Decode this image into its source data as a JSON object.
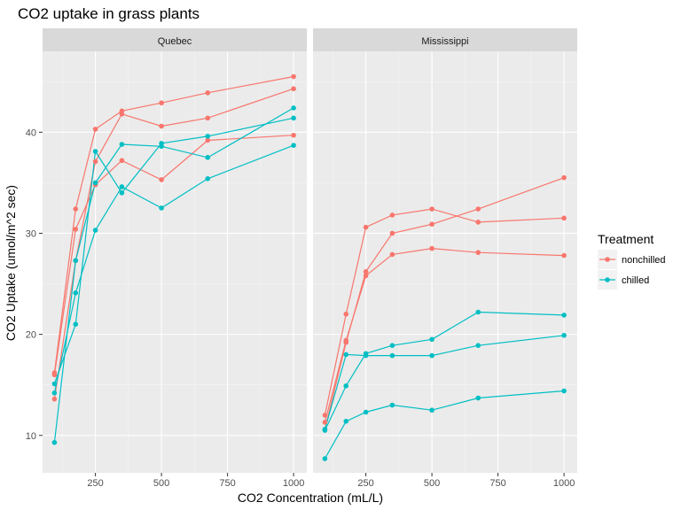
{
  "chart_data": {
    "type": "line",
    "title": "CO2 uptake in grass plants",
    "xlabel": "CO2 Concentration (mL/L)",
    "ylabel": "CO2 Uptake (umol/m^2 sec)",
    "xlim": [
      50,
      1050
    ],
    "ylim": [
      6.3,
      48
    ],
    "x_ticks": [
      250,
      500,
      750,
      1000
    ],
    "y_ticks": [
      10,
      20,
      30,
      40
    ],
    "grid": true,
    "legend": {
      "title": "Treatment",
      "position": "right",
      "entries": [
        {
          "name": "nonchilled",
          "color": "#F8766D"
        },
        {
          "name": "chilled",
          "color": "#00BFC4"
        }
      ]
    },
    "panels": [
      {
        "name": "Quebec",
        "series": [
          {
            "name": "nonchilled",
            "color": "#F8766D",
            "x": [
              95,
              175,
              250,
              350,
              500,
              675,
              1000
            ],
            "y": [
              16.2,
              32.4,
              40.3,
              42.1,
              42.9,
              43.9,
              45.5
            ]
          },
          {
            "name": "nonchilled",
            "color": "#F8766D",
            "x": [
              95,
              175,
              250,
              350,
              500,
              675,
              1000
            ],
            "y": [
              13.6,
              27.3,
              37.1,
              41.8,
              40.6,
              41.4,
              44.3
            ]
          },
          {
            "name": "nonchilled",
            "color": "#F8766D",
            "x": [
              95,
              175,
              250,
              350,
              500,
              675,
              1000
            ],
            "y": [
              16.0,
              30.4,
              34.8,
              37.2,
              35.3,
              39.2,
              39.7
            ]
          },
          {
            "name": "chilled",
            "color": "#00BFC4",
            "x": [
              95,
              175,
              250,
              350,
              500,
              675,
              1000
            ],
            "y": [
              14.2,
              24.1,
              30.3,
              34.6,
              32.5,
              35.4,
              38.7
            ]
          },
          {
            "name": "chilled",
            "color": "#00BFC4",
            "x": [
              95,
              175,
              250,
              350,
              500,
              675,
              1000
            ],
            "y": [
              9.3,
              27.3,
              35.0,
              38.8,
              38.6,
              37.5,
              42.4
            ]
          },
          {
            "name": "chilled",
            "color": "#00BFC4",
            "x": [
              95,
              175,
              250,
              350,
              500,
              675,
              1000
            ],
            "y": [
              15.1,
              21.0,
              38.1,
              34.0,
              38.9,
              39.6,
              41.4
            ]
          }
        ]
      },
      {
        "name": "Mississippi",
        "series": [
          {
            "name": "nonchilled",
            "color": "#F8766D",
            "x": [
              95,
              175,
              250,
              350,
              500,
              675,
              1000
            ],
            "y": [
              10.6,
              19.2,
              26.2,
              30.0,
              30.9,
              32.4,
              35.5
            ]
          },
          {
            "name": "nonchilled",
            "color": "#F8766D",
            "x": [
              95,
              175,
              250,
              350,
              500,
              675,
              1000
            ],
            "y": [
              12.0,
              22.0,
              30.6,
              31.8,
              32.4,
              31.1,
              31.5
            ]
          },
          {
            "name": "nonchilled",
            "color": "#F8766D",
            "x": [
              95,
              175,
              250,
              350,
              500,
              675,
              1000
            ],
            "y": [
              11.3,
              19.4,
              25.8,
              27.9,
              28.5,
              28.1,
              27.8
            ]
          },
          {
            "name": "chilled",
            "color": "#00BFC4",
            "x": [
              95,
              175,
              250,
              350,
              500,
              675,
              1000
            ],
            "y": [
              10.5,
              14.9,
              18.1,
              18.9,
              19.5,
              22.2,
              21.9
            ]
          },
          {
            "name": "chilled",
            "color": "#00BFC4",
            "x": [
              95,
              175,
              250,
              350,
              500,
              675,
              1000
            ],
            "y": [
              7.7,
              11.4,
              12.3,
              13.0,
              12.5,
              13.7,
              14.4
            ]
          },
          {
            "name": "chilled",
            "color": "#00BFC4",
            "x": [
              95,
              175,
              250,
              350,
              500,
              675,
              1000
            ],
            "y": [
              10.6,
              18.0,
              17.9,
              17.9,
              17.9,
              18.9,
              19.9
            ]
          }
        ]
      }
    ]
  }
}
